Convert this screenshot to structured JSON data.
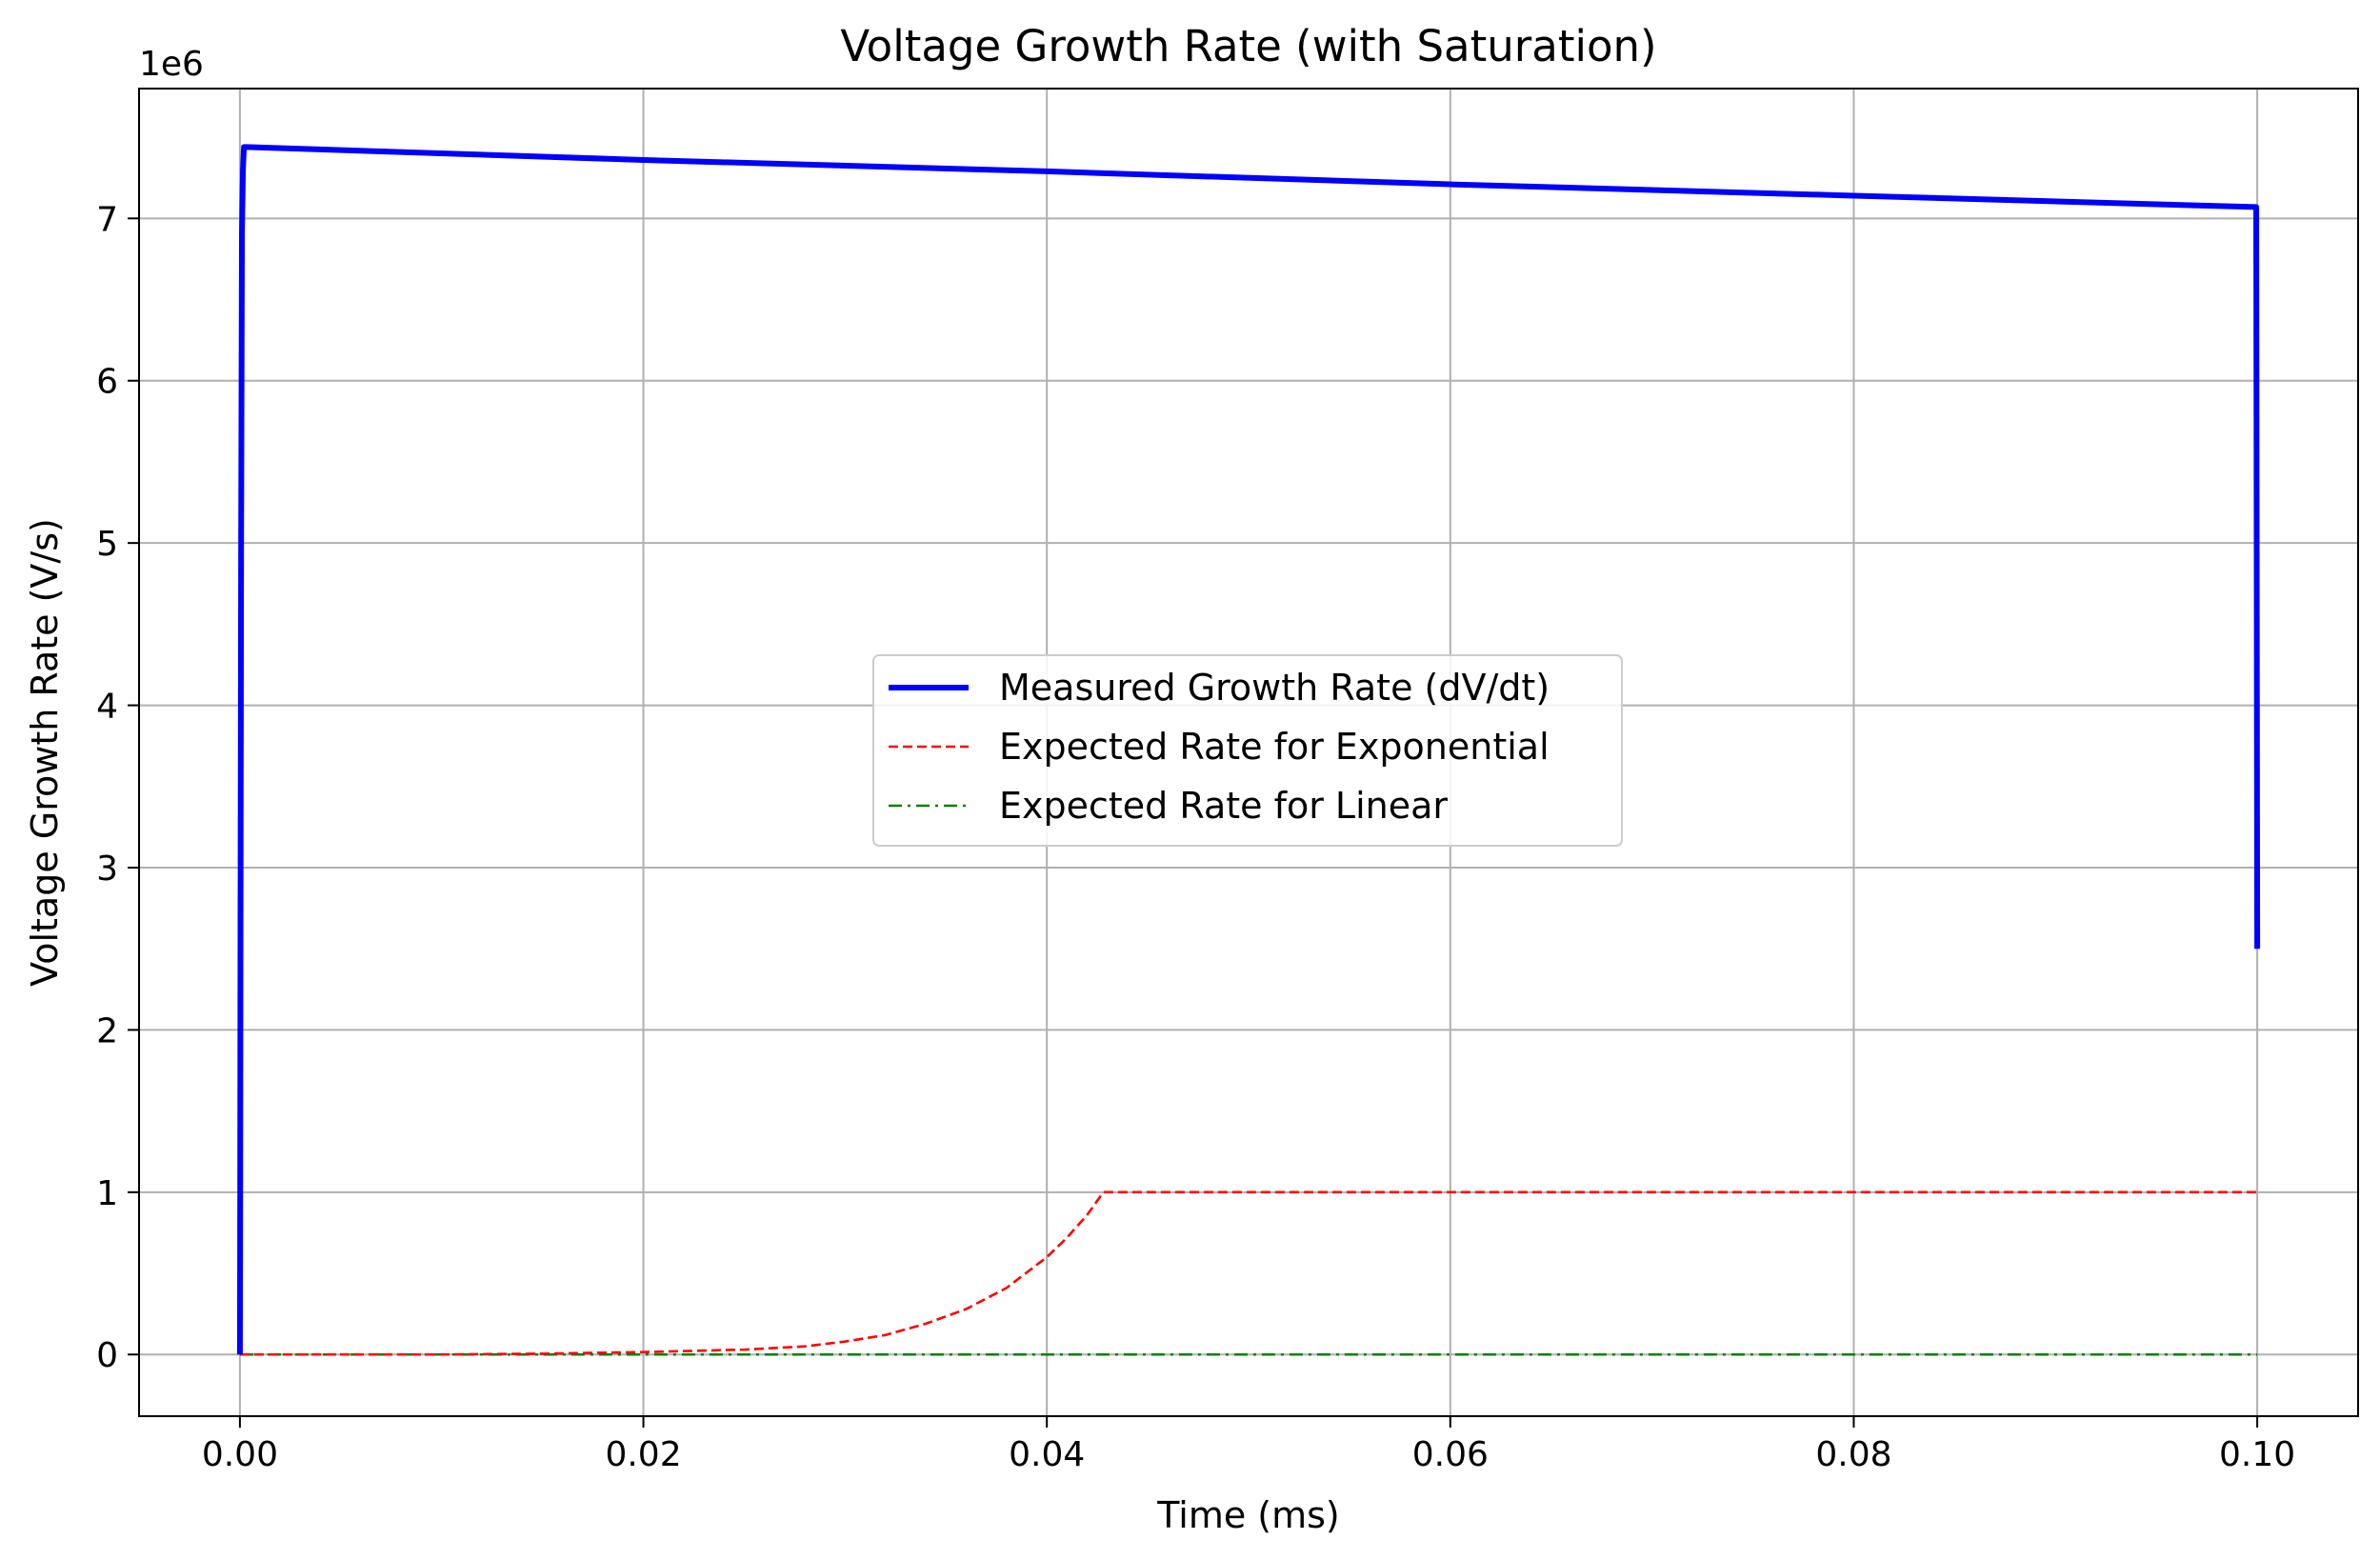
{
  "chart_data": {
    "type": "line",
    "title": "Voltage Growth Rate (with Saturation)",
    "xlabel": "Time (ms)",
    "ylabel": "Voltage Growth Rate (V/s)",
    "y_offset_label": "1e6",
    "xlim": [
      -0.005,
      0.105
    ],
    "ylim": [
      -0.38,
      7.8
    ],
    "xticks": [
      0.0,
      0.02,
      0.04,
      0.06,
      0.08,
      0.1
    ],
    "xtick_labels": [
      "0.00",
      "0.02",
      "0.04",
      "0.06",
      "0.08",
      "0.10"
    ],
    "yticks": [
      0,
      1,
      2,
      3,
      4,
      5,
      6,
      7
    ],
    "ytick_labels": [
      "0",
      "1",
      "2",
      "3",
      "4",
      "5",
      "6",
      "7"
    ],
    "grid": true,
    "legend_position": "center",
    "y_scale_factor": 1000000,
    "series": [
      {
        "name": "Measured Growth Rate (dV/dt)",
        "color": "#0000ff",
        "style": "solid",
        "x": [
          0.0,
          1e-05,
          3e-05,
          6e-05,
          0.0001,
          0.00015,
          0.0002,
          0.0003,
          0.02,
          0.04,
          0.06,
          0.08,
          0.0999,
          0.09995,
          0.1
        ],
        "y": [
          0.0,
          0.6,
          2.65,
          5.0,
          6.9,
          7.3,
          7.44,
          7.44,
          7.36,
          7.29,
          7.21,
          7.14,
          7.07,
          7.07,
          2.5
        ]
      },
      {
        "name": "Expected Rate for Exponential",
        "color": "#ff0000",
        "style": "dashed",
        "x": [
          0.0,
          0.01,
          0.015,
          0.02,
          0.025,
          0.028,
          0.03,
          0.032,
          0.034,
          0.036,
          0.038,
          0.04,
          0.041,
          0.042,
          0.0428,
          0.05,
          0.06,
          0.07,
          0.08,
          0.09,
          0.1
        ],
        "y": [
          0.0,
          0.0,
          0.005,
          0.015,
          0.03,
          0.05,
          0.08,
          0.12,
          0.19,
          0.28,
          0.41,
          0.6,
          0.72,
          0.86,
          1.0,
          1.0,
          1.0,
          1.0,
          1.0,
          1.0,
          1.0
        ]
      },
      {
        "name": "Expected Rate for Linear",
        "color": "#008000",
        "style": "dashdot",
        "x": [
          0.0,
          0.1
        ],
        "y": [
          0.0,
          0.0
        ]
      }
    ]
  }
}
